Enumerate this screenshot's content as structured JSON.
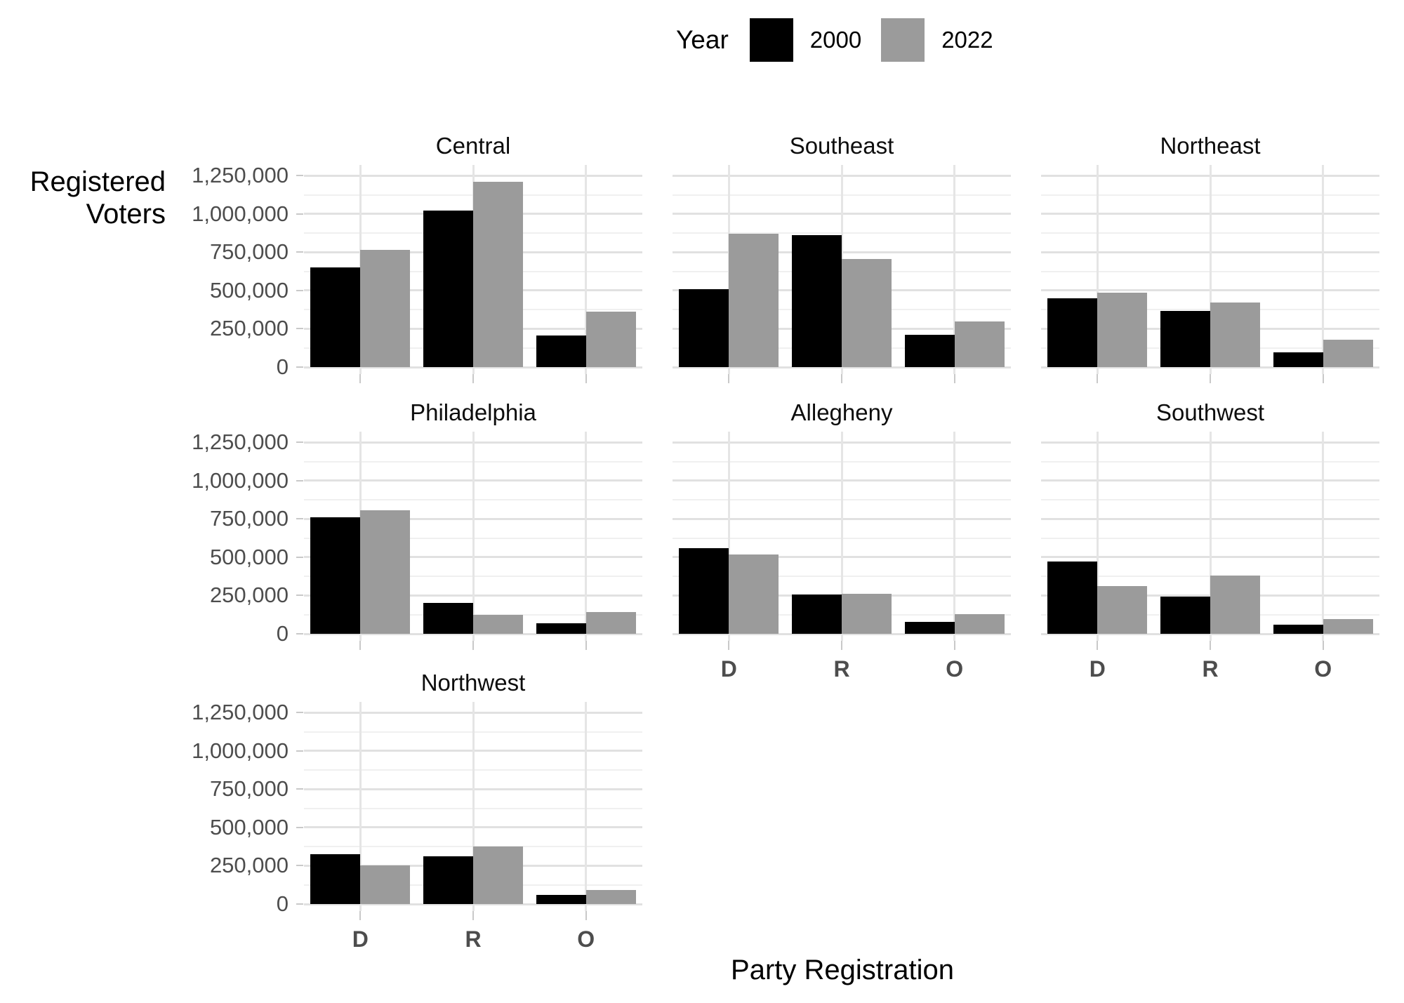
{
  "legend": {
    "title": "Year",
    "items": [
      {
        "label": "2000",
        "color": "#000000"
      },
      {
        "label": "2022",
        "color": "#9b9b9b"
      }
    ]
  },
  "axes": {
    "y_title_line1": "Registered",
    "y_title_line2": "Voters",
    "x_title": "Party Registration",
    "y_tick_labels": [
      "1,250,000",
      "1,000,000",
      "750,000",
      "500,000",
      "250,000",
      "0"
    ],
    "x_tick_labels": [
      "D",
      "R",
      "O"
    ]
  },
  "chart_data": {
    "type": "bar",
    "grouped": true,
    "title": "",
    "xlabel": "Party Registration",
    "ylabel": "Registered Voters",
    "categories": [
      "D",
      "R",
      "O"
    ],
    "series_names": [
      "2000",
      "2022"
    ],
    "series_colors": {
      "2000": "#000000",
      "2022": "#9b9b9b"
    },
    "y_axis": {
      "ticks": [
        0,
        250000,
        500000,
        750000,
        1000000,
        1250000
      ],
      "minor_step": 125000,
      "panel_max": 1320000,
      "grid": true,
      "legend_position": "top-center"
    },
    "facets": [
      {
        "name": "Central",
        "row": 0,
        "col": 0,
        "show_x_axis": false,
        "values": {
          "2000": [
            650000,
            1020000,
            205000
          ],
          "2022": [
            765000,
            1210000,
            360000
          ]
        }
      },
      {
        "name": "Southeast",
        "row": 0,
        "col": 1,
        "show_x_axis": false,
        "values": {
          "2000": [
            510000,
            860000,
            210000
          ],
          "2022": [
            870000,
            705000,
            300000
          ]
        }
      },
      {
        "name": "Northeast",
        "row": 0,
        "col": 2,
        "show_x_axis": false,
        "values": {
          "2000": [
            450000,
            365000,
            95000
          ],
          "2022": [
            485000,
            420000,
            180000
          ]
        }
      },
      {
        "name": "Philadelphia",
        "row": 1,
        "col": 0,
        "show_x_axis": false,
        "values": {
          "2000": [
            760000,
            200000,
            70000
          ],
          "2022": [
            805000,
            125000,
            140000
          ]
        }
      },
      {
        "name": "Allegheny",
        "row": 1,
        "col": 1,
        "show_x_axis": true,
        "values": {
          "2000": [
            560000,
            255000,
            80000
          ],
          "2022": [
            520000,
            260000,
            130000
          ]
        }
      },
      {
        "name": "Southwest",
        "row": 1,
        "col": 2,
        "show_x_axis": true,
        "values": {
          "2000": [
            470000,
            245000,
            60000
          ],
          "2022": [
            310000,
            380000,
            95000
          ]
        }
      },
      {
        "name": "Northwest",
        "row": 2,
        "col": 0,
        "show_x_axis": true,
        "values": {
          "2000": [
            325000,
            310000,
            60000
          ],
          "2022": [
            250000,
            375000,
            90000
          ]
        }
      }
    ]
  }
}
